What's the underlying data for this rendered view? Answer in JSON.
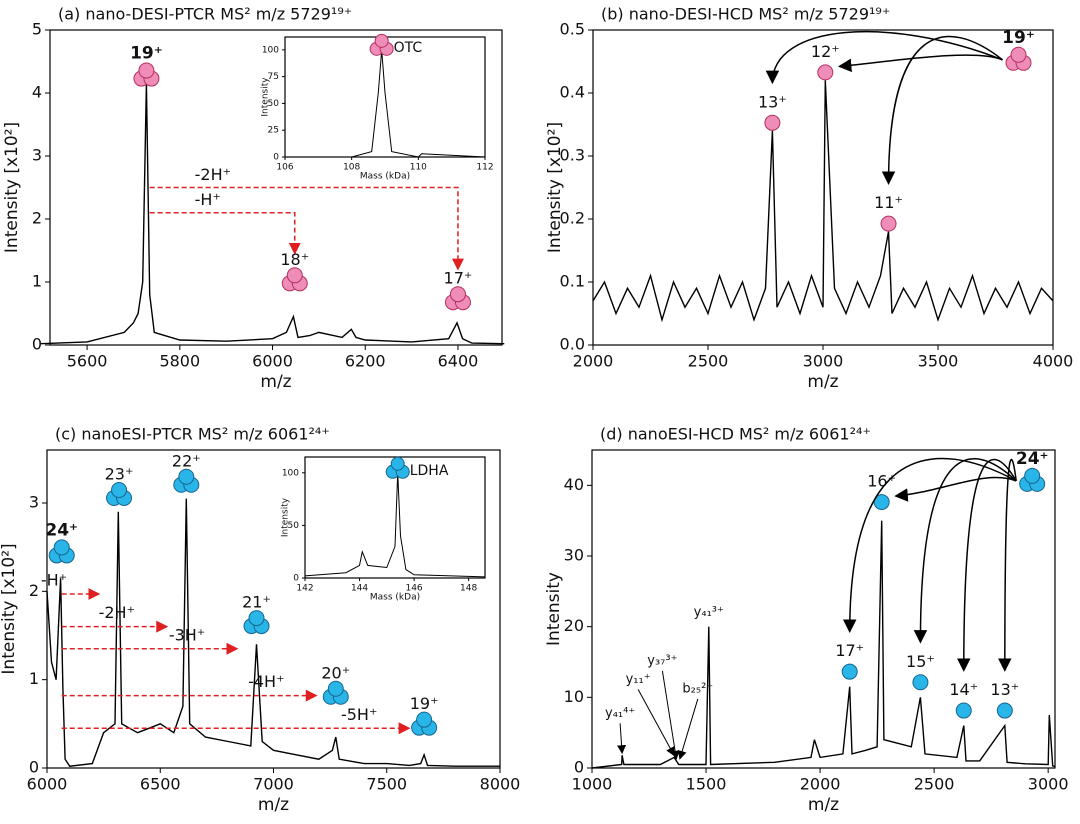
{
  "chart_data": [
    {
      "type": "line",
      "title": "(a) nano-DESI-PTCR MS² m/z 5729¹⁹⁺",
      "xlabel": "m/z",
      "ylabel": "Intensity [x10²]",
      "x": [
        5500,
        5600,
        5680,
        5700,
        5710,
        5720,
        5728,
        5735,
        5745,
        5800,
        5900,
        6000,
        6030,
        6045,
        6055,
        6080,
        6100,
        6150,
        6170,
        6180,
        6200,
        6300,
        6380,
        6398,
        6410,
        6430,
        6500
      ],
      "values": [
        0.02,
        0.05,
        0.2,
        0.35,
        0.5,
        1,
        4.15,
        0.8,
        0.2,
        0.08,
        0.06,
        0.1,
        0.2,
        0.45,
        0.12,
        0.15,
        0.2,
        0.12,
        0.25,
        0.12,
        0.08,
        0.05,
        0.1,
        0.35,
        0.1,
        0.03,
        0.02
      ],
      "color": "#000000",
      "xlim": [
        5520,
        6495
      ],
      "xticks": [
        5600,
        5800,
        6000,
        6200,
        6400
      ],
      "ylim": [
        0,
        5
      ],
      "yticks": [
        0,
        1,
        2,
        3,
        4,
        5
      ],
      "marker_color": "#f08cb8",
      "marker_stroke": "#b3305f",
      "ion_marker": "cluster",
      "arrow_color": "#e02020",
      "precursor": {
        "label": "19⁺",
        "x": 5728,
        "y": 4.15
      },
      "ions": [
        {
          "label": "18⁺",
          "x": 6048,
          "y": 0.9
        },
        {
          "label": "17⁺",
          "x": 6400,
          "y": 0.6
        }
      ],
      "shifts": [
        {
          "label": "-H⁺",
          "x0": 5735,
          "x1": 6048,
          "y": 2.1,
          "y_end": 1.45
        },
        {
          "label": "-2H⁺",
          "x0": 5735,
          "x1": 6400,
          "y": 2.5,
          "y_end": 1.2
        }
      ],
      "inset": {
        "type": "line",
        "xlabel": "Mass (kDa)",
        "ylabel": "Intensity",
        "x": [
          106,
          108,
          108.6,
          108.8,
          108.9,
          109.0,
          109.2,
          110,
          110.1,
          112
        ],
        "values": [
          0,
          0,
          5,
          60,
          100,
          60,
          5,
          0,
          3,
          0
        ],
        "color": "#000000",
        "xlim": [
          106,
          112
        ],
        "xticks": [
          106,
          108,
          110,
          112
        ],
        "ylim": [
          0,
          112
        ],
        "yticks": [
          0,
          25,
          50,
          75,
          100
        ],
        "peak_label": {
          "label": "OTC",
          "x": 108.9,
          "y": 100
        }
      }
    },
    {
      "type": "line",
      "title": "(b) nano-DESI-HCD MS² m/z 5729¹⁹⁺",
      "xlabel": "m/z",
      "ylabel": "Intensity [x10²]",
      "x": [
        2000,
        2050,
        2100,
        2150,
        2200,
        2250,
        2300,
        2350,
        2400,
        2450,
        2500,
        2550,
        2600,
        2650,
        2700,
        2750,
        2780,
        2800,
        2850,
        2900,
        2950,
        3000,
        3010,
        3050,
        3100,
        3150,
        3200,
        3250,
        3285,
        3300,
        3350,
        3400,
        3450,
        3500,
        3550,
        3600,
        3650,
        3700,
        3750,
        3800,
        3850,
        3900,
        3950,
        4000
      ],
      "values": [
        0.07,
        0.1,
        0.05,
        0.09,
        0.06,
        0.11,
        0.04,
        0.1,
        0.06,
        0.09,
        0.05,
        0.11,
        0.06,
        0.1,
        0.04,
        0.09,
        0.34,
        0.06,
        0.1,
        0.05,
        0.11,
        0.06,
        0.42,
        0.09,
        0.05,
        0.1,
        0.06,
        0.11,
        0.18,
        0.05,
        0.09,
        0.06,
        0.1,
        0.04,
        0.09,
        0.06,
        0.11,
        0.05,
        0.09,
        0.06,
        0.1,
        0.05,
        0.09,
        0.07
      ],
      "color": "#000000",
      "xlim": [
        2000,
        4000
      ],
      "xticks": [
        2000,
        2500,
        3000,
        3500,
        4000
      ],
      "ylim": [
        0,
        0.5
      ],
      "yticks": [
        {
          "value": 0,
          "label": "0.0"
        },
        0.1,
        0.2,
        0.3,
        0.4,
        0.5
      ],
      "marker_color": "#f08cb8",
      "marker_stroke": "#b3305f",
      "ion_marker": "circle",
      "precursor": {
        "label": "19⁺",
        "x": 3850,
        "y": 0.44
      },
      "ions": [
        {
          "label": "13⁺",
          "x": 2780,
          "y": 0.34
        },
        {
          "label": "12⁺",
          "x": 3010,
          "y": 0.42
        },
        {
          "label": "11⁺",
          "x": 3285,
          "y": 0.18
        }
      ]
    },
    {
      "type": "line",
      "title": "(c) nanoESI-PTCR MS² m/z 6061²⁴⁺",
      "xlabel": "m/z",
      "ylabel": "Intensity [x10²]",
      "x": [
        6000,
        6020,
        6040,
        6060,
        6070,
        6080,
        6100,
        6200,
        6250,
        6300,
        6315,
        6330,
        6400,
        6500,
        6560,
        6600,
        6615,
        6630,
        6700,
        6800,
        6900,
        6925,
        6950,
        7000,
        7100,
        7200,
        7260,
        7275,
        7290,
        7400,
        7500,
        7600,
        7650,
        7665,
        7680,
        7800,
        8000
      ],
      "values": [
        2.0,
        1.2,
        1.0,
        2.15,
        0.9,
        0.1,
        0.02,
        0.05,
        0.4,
        0.5,
        2.9,
        0.5,
        0.4,
        0.5,
        0.4,
        0.7,
        3.05,
        0.5,
        0.35,
        0.3,
        0.25,
        1.4,
        0.3,
        0.2,
        0.15,
        0.1,
        0.2,
        0.35,
        0.1,
        0.05,
        0.05,
        0.03,
        0.05,
        0.15,
        0.03,
        0.02,
        0.02
      ],
      "color": "#000000",
      "xlim": [
        6000,
        8000
      ],
      "xticks": [
        6000,
        6500,
        7000,
        7500,
        8000
      ],
      "ylim": [
        0,
        3.6
      ],
      "yticks": [
        0,
        1,
        2,
        3
      ],
      "marker_color": "#29b5e8",
      "marker_stroke": "#16658f",
      "ion_marker": "cluster",
      "arrow_color": "#e02020",
      "precursor": {
        "label": "24⁺",
        "x": 6065,
        "y": 2.35
      },
      "ions": [
        {
          "label": "23⁺",
          "x": 6318,
          "y": 3.0
        },
        {
          "label": "22⁺",
          "x": 6615,
          "y": 3.15
        },
        {
          "label": "21⁺",
          "x": 6925,
          "y": 1.55
        },
        {
          "label": "20⁺",
          "x": 7275,
          "y": 0.75
        },
        {
          "label": "19⁺",
          "x": 7665,
          "y": 0.4
        }
      ],
      "shifts": [
        {
          "label": "-H⁺",
          "x0": 6065,
          "x1": 6230,
          "y": 1.97
        },
        {
          "label": "-2H⁺",
          "x0": 6065,
          "x1": 6530,
          "y": 1.6
        },
        {
          "label": "-3H⁺",
          "x0": 6065,
          "x1": 6840,
          "y": 1.35
        },
        {
          "label": "-4H⁺",
          "x0": 6065,
          "x1": 7190,
          "y": 0.82
        },
        {
          "label": "-5H⁺",
          "x0": 6065,
          "x1": 7600,
          "y": 0.45
        }
      ],
      "inset": {
        "type": "line",
        "xlabel": "Mass (kDa)",
        "ylabel": "Intensity",
        "x": [
          142,
          143.5,
          144,
          144.1,
          144.3,
          145,
          145.3,
          145.4,
          145.5,
          145.7,
          146,
          148.6
        ],
        "values": [
          2,
          5,
          12,
          25,
          12,
          10,
          30,
          100,
          40,
          8,
          3,
          1
        ],
        "color": "#000000",
        "xlim": [
          142,
          148.6
        ],
        "xticks": [
          142,
          144,
          146,
          148
        ],
        "ylim": [
          0,
          115
        ],
        "yticks": [
          0,
          50,
          100
        ],
        "peak_label": {
          "label": "LDHA",
          "x": 145.4,
          "y": 100
        }
      }
    },
    {
      "type": "line",
      "title": "(d) nanoESI-HCD MS² m/z 6061²⁴⁺",
      "xlabel": "m/z",
      "ylabel": "Intensity",
      "x": [
        1000,
        1130,
        1132,
        1140,
        1300,
        1360,
        1380,
        1500,
        1512,
        1520,
        1800,
        1960,
        1975,
        2000,
        2100,
        2130,
        2140,
        2200,
        2250,
        2270,
        2280,
        2400,
        2440,
        2460,
        2600,
        2630,
        2640,
        2700,
        2810,
        2820,
        2900,
        3000,
        3005,
        3020,
        3030
      ],
      "values": [
        0,
        0.5,
        1.8,
        0.5,
        0.5,
        1.5,
        0.5,
        0.5,
        20,
        0.5,
        0.8,
        1.5,
        4,
        1.5,
        2,
        11.5,
        2,
        2.5,
        3,
        35,
        4,
        3,
        10,
        2,
        1.5,
        6,
        1,
        1,
        6,
        0.8,
        0.6,
        0.5,
        7.5,
        0.3,
        0.2
      ],
      "color": "#000000",
      "xlim": [
        1000,
        3030
      ],
      "xticks": [
        1000,
        1500,
        2000,
        2500,
        3000
      ],
      "ylim": [
        0,
        45
      ],
      "yticks": [
        0,
        10,
        20,
        30,
        40
      ],
      "marker_color": "#29b5e8",
      "marker_stroke": "#16658f",
      "ion_marker": "circle",
      "precursor": {
        "label": "24⁺",
        "x": 2930,
        "y": 39.5
      },
      "ions": [
        {
          "label": "16⁺",
          "x": 2270,
          "y": 36.5
        },
        {
          "label": "17⁺",
          "x": 2130,
          "y": 12.5
        },
        {
          "label": "15⁺",
          "x": 2440,
          "y": 11
        },
        {
          "label": "14⁺",
          "x": 2630,
          "y": 7
        },
        {
          "label": "13⁺",
          "x": 2810,
          "y": 7
        }
      ],
      "fragments": [
        {
          "label": "y₄₁⁴⁺",
          "x": 1132,
          "y": 1.8
        },
        {
          "label": "y₁₁⁺",
          "x": 1360,
          "y": 1.5
        },
        {
          "label": "y₃₇³⁺",
          "x": 1370,
          "y": 1.0
        },
        {
          "label": "b₂₅²⁺",
          "x": 1385,
          "y": 1.0
        },
        {
          "label": "y₄₁³⁺",
          "x": 1512,
          "y": 20
        }
      ]
    }
  ]
}
